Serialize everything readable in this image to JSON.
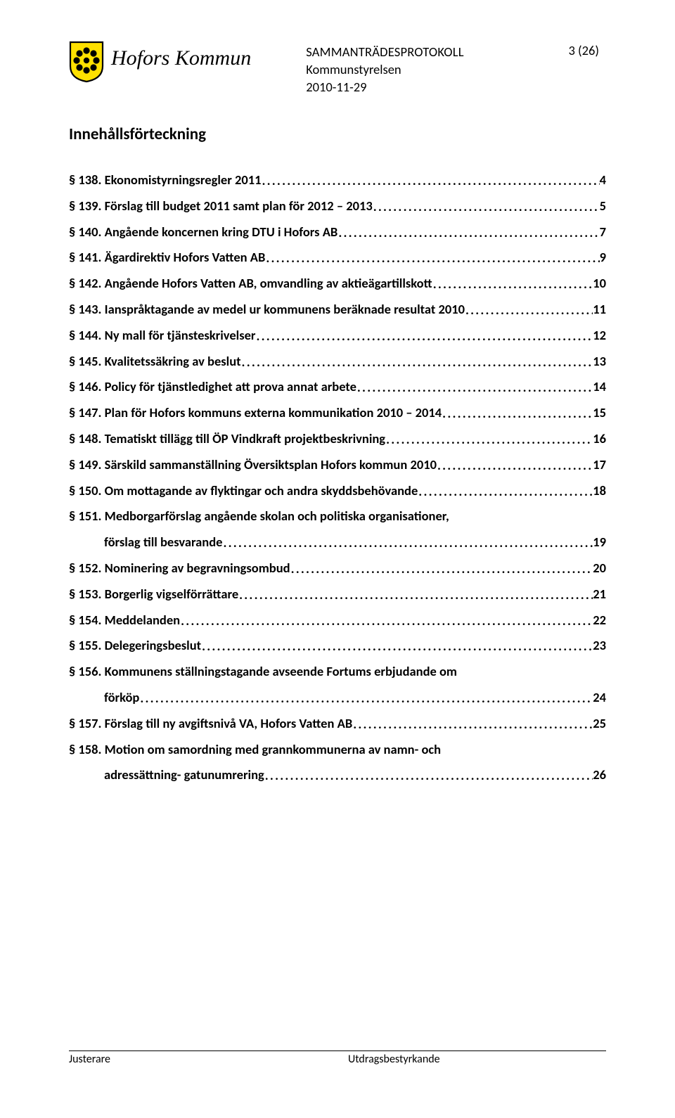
{
  "header": {
    "org_name": "Hofors Kommun",
    "doc_type": "SAMMANTRÄDESPROTOKOLL",
    "subject": "Kommunstyrelsen",
    "date": "2010-11-29",
    "page_num": "3 (26)"
  },
  "toc_title": "Innehållsförteckning",
  "entries": [
    {
      "label": "§ 138. Ekonomistyrningsregler 2011",
      "page": "4"
    },
    {
      "label": "§ 139. Förslag till budget 2011 samt plan för 2012 – 2013",
      "page": "5"
    },
    {
      "label": "§ 140. Angående koncernen kring DTU i Hofors AB",
      "page": "7"
    },
    {
      "label": "§ 141. Ägardirektiv Hofors Vatten AB",
      "page": "9"
    },
    {
      "label": "§ 142. Angående Hofors Vatten AB, omvandling av aktieägartillskott",
      "page": "10"
    },
    {
      "label": "§ 143. Ianspråktagande av medel ur kommunens beräknade resultat 2010",
      "page": "11"
    },
    {
      "label": "§ 144. Ny mall för tjänsteskrivelser",
      "page": "12"
    },
    {
      "label": "§ 145. Kvalitetssäkring av beslut",
      "page": "13"
    },
    {
      "label": "§ 146. Policy för tjänstledighet att prova annat arbete",
      "page": "14"
    },
    {
      "label": "§ 147. Plan för Hofors kommuns externa kommunikation 2010 – 2014",
      "page": "15"
    },
    {
      "label": "§ 148. Tematiskt tillägg till ÖP Vindkraft projektbeskrivning",
      "page": "16"
    },
    {
      "label": "§ 149. Särskild sammanställning Översiktsplan Hofors kommun 2010",
      "page": "17"
    },
    {
      "label": "§ 150. Om mottagande av flyktingar och andra skyddsbehövande",
      "page": "18"
    },
    {
      "label_line1": "§ 151. Medborgarförslag angående skolan och politiska organisationer,",
      "label_line2": "förslag till besvarande",
      "page": "19",
      "wrap": true
    },
    {
      "label": "§ 152. Nominering av begravningsombud",
      "page": "20"
    },
    {
      "label": "§ 153. Borgerlig vigselförrättare",
      "page": "21"
    },
    {
      "label": "§ 154. Meddelanden",
      "page": "22"
    },
    {
      "label": "§ 155. Delegeringsbeslut",
      "page": "23"
    },
    {
      "label_line1": "§ 156. Kommunens ställningstagande avseende Fortums erbjudande om",
      "label_line2": "förköp",
      "page": "24",
      "wrap": true
    },
    {
      "label": "§ 157. Förslag till ny avgiftsnivå VA, Hofors Vatten AB",
      "page": "25"
    },
    {
      "label_line1": "§ 158. Motion om samordning med grannkommunerna av namn- och",
      "label_line2": "adressättning- gatunumrering",
      "page": "26",
      "wrap": true
    }
  ],
  "footer": {
    "left": "Justerare",
    "right": "Utdragsbestyrkande"
  },
  "colors": {
    "text": "#000000",
    "background": "#ffffff",
    "crest_shield_fill": "#fee000",
    "crest_shield_stroke": "#000000",
    "crest_flower": "#000000"
  },
  "fonts": {
    "body_family": "Calibri",
    "body_size_pt": 14,
    "org_name_family": "Monotype Corsiva",
    "org_name_size_pt": 22,
    "toc_title_size_pt": 17,
    "footer_size_pt": 12
  },
  "leader_char": "."
}
